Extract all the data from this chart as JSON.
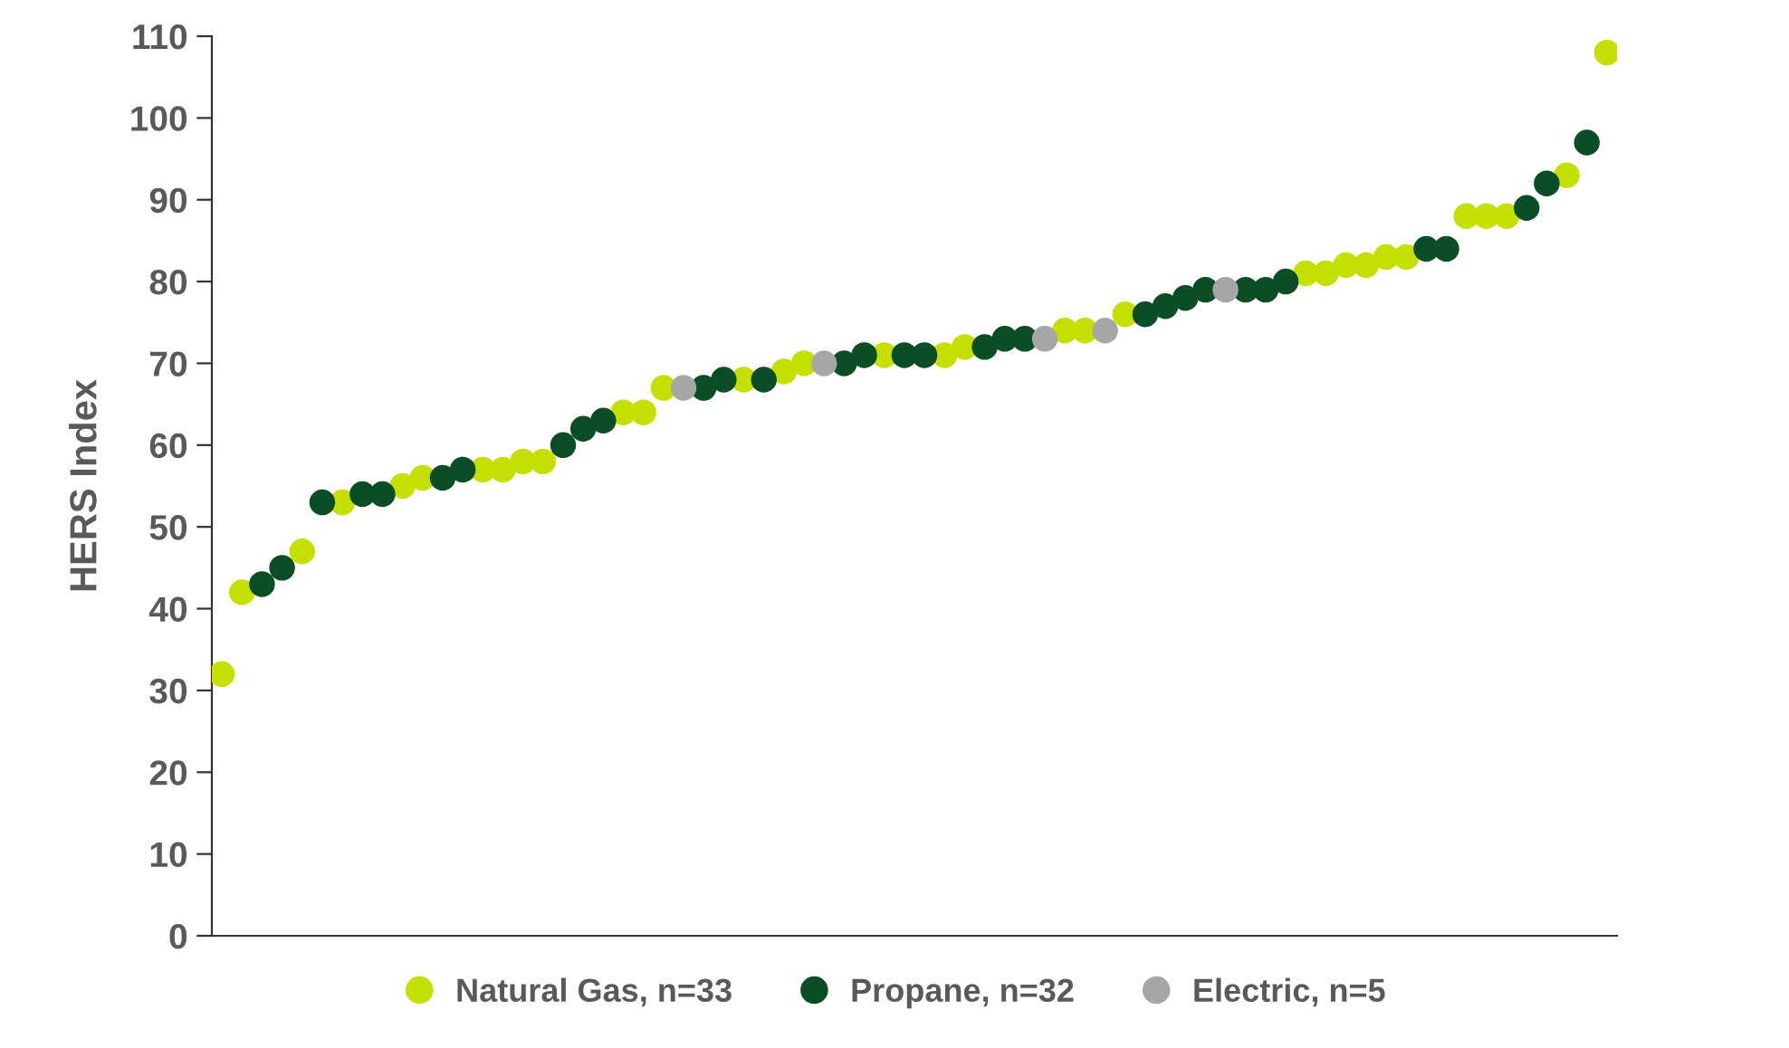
{
  "chart_data": {
    "type": "scatter",
    "ylabel": "HERS Index",
    "categories": [
      null,
      null,
      null,
      null,
      null,
      null,
      null,
      null,
      null,
      null,
      null,
      null,
      null,
      null,
      null,
      null,
      null,
      null,
      null,
      null,
      null,
      null,
      null,
      null,
      null,
      null,
      null,
      null,
      null,
      null,
      null,
      null,
      null,
      null,
      null,
      null,
      null,
      null,
      null,
      null,
      null,
      null,
      null,
      null,
      null,
      null,
      null,
      null,
      null,
      null,
      null,
      null,
      null,
      null,
      null,
      null,
      null,
      null,
      null,
      null,
      null,
      null,
      null,
      null,
      null,
      null,
      null,
      null,
      null,
      null
    ],
    "series": [
      {
        "name": "Natural Gas, n=33",
        "color": "#c5e000",
        "values": [
          32,
          42,
          null,
          null,
          47,
          null,
          53,
          null,
          null,
          55,
          56,
          null,
          null,
          57,
          57,
          58,
          58,
          null,
          null,
          null,
          64,
          64,
          67,
          null,
          null,
          null,
          68,
          null,
          69,
          70,
          null,
          null,
          null,
          71,
          null,
          null,
          71,
          72,
          null,
          null,
          null,
          null,
          74,
          74,
          null,
          76,
          null,
          null,
          null,
          null,
          null,
          null,
          null,
          null,
          81,
          81,
          82,
          82,
          83,
          83,
          null,
          null,
          88,
          88,
          88,
          null,
          null,
          93,
          null,
          108
        ]
      },
      {
        "name": "Propane, n=32",
        "color": "#0b4d24",
        "values": [
          null,
          null,
          43,
          45,
          null,
          53,
          null,
          54,
          54,
          null,
          null,
          56,
          57,
          null,
          null,
          null,
          null,
          60,
          62,
          63,
          null,
          null,
          null,
          null,
          67,
          68,
          null,
          68,
          null,
          null,
          null,
          70,
          71,
          null,
          71,
          71,
          null,
          null,
          72,
          73,
          73,
          null,
          null,
          null,
          null,
          null,
          76,
          77,
          78,
          79,
          null,
          79,
          79,
          80,
          null,
          null,
          null,
          null,
          null,
          null,
          84,
          84,
          null,
          null,
          null,
          89,
          92,
          null,
          97,
          null
        ]
      },
      {
        "name": "Electric, n=5",
        "color": "#a6a6a6",
        "values": [
          null,
          null,
          null,
          null,
          null,
          null,
          null,
          null,
          null,
          null,
          null,
          null,
          null,
          null,
          null,
          null,
          null,
          null,
          null,
          null,
          null,
          null,
          null,
          67,
          null,
          null,
          null,
          null,
          null,
          null,
          70,
          null,
          null,
          null,
          null,
          null,
          null,
          null,
          null,
          null,
          null,
          73,
          null,
          null,
          74,
          null,
          null,
          null,
          null,
          null,
          79,
          null,
          null,
          null,
          null,
          null,
          null,
          null,
          null,
          null,
          null,
          null,
          null,
          null,
          null,
          null,
          null,
          null,
          null,
          null
        ]
      }
    ],
    "ylim": [
      0,
      110
    ],
    "yticks": [
      0,
      10,
      20,
      30,
      40,
      50,
      60,
      70,
      80,
      90,
      100,
      110
    ],
    "grid": false,
    "legend": "bottom",
    "marker": "circle",
    "tick_labels": "y"
  }
}
